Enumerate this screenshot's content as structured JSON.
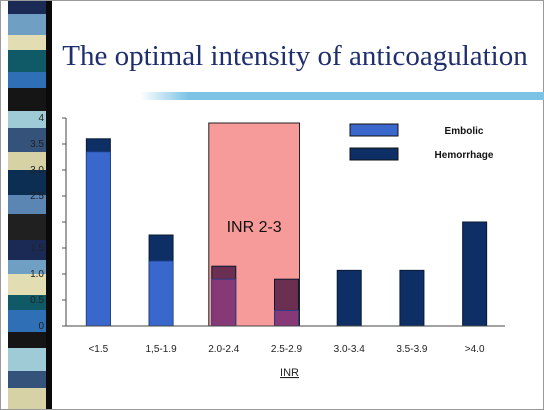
{
  "title": "The optimal intensity of anticoagulation",
  "colors": {
    "embolic": "#3a67cc",
    "hemorrhage": "#0d2f66",
    "therapeutic_range": "#f79a9a",
    "overlap": "#6b2f52",
    "title": "#1f2f6e",
    "accent_rule": "#7cc3e6"
  },
  "chart_data": {
    "type": "bar",
    "xlabel": "INR",
    "ylabel": "",
    "ylim": [
      0,
      4
    ],
    "y_ticks": [
      "4",
      "3.5",
      "3.0",
      "2.5",
      "2",
      "1.5",
      "1.0",
      "0.5",
      "0"
    ],
    "categories": [
      "<1.5",
      "1,5-1.9",
      "2.0-2.4",
      "2.5-2.9",
      "3.0-3.4",
      "3.5-3.9",
      ">4.0"
    ],
    "series": [
      {
        "name": "Embolic",
        "values": [
          3.35,
          1.25,
          0.9,
          0.3,
          0,
          0,
          0
        ]
      },
      {
        "name": "Hemorrhage",
        "values": [
          3.6,
          1.75,
          1.15,
          0.9,
          1.07,
          1.07,
          2.0
        ]
      }
    ],
    "legend_position": "top-right",
    "annotation": {
      "label": "INR 2-3",
      "from_category": "2.0-2.4",
      "to_category": "2.5-2.9"
    }
  }
}
